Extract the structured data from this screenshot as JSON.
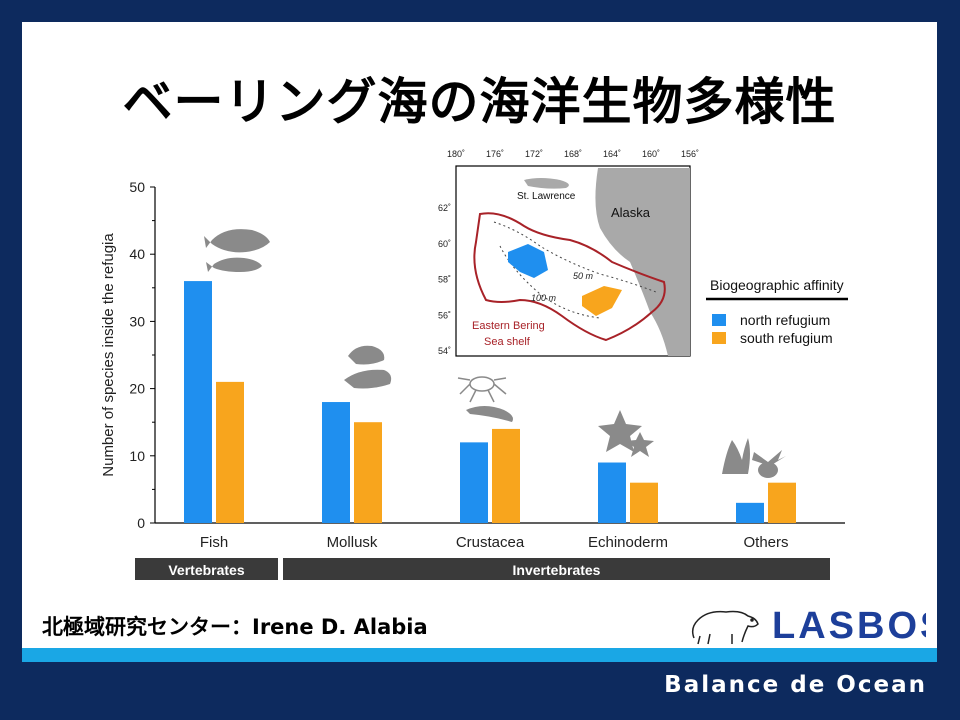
{
  "slide": {
    "title": "ベーリング海の海洋生物多様性",
    "credit": "北極域研究センター：Irene D. Alabia",
    "footer": "Balance de Ocean",
    "logo_text": "LASBOS",
    "colors": {
      "frame": "#0d2a5e",
      "stripe": "#1aa7e5",
      "north": "#1f8fef",
      "south": "#f8a51d"
    }
  },
  "chart_data": {
    "type": "bar",
    "ylabel": "Number of species inside the refugia",
    "ylim": [
      0,
      50
    ],
    "yticks": [
      0,
      10,
      20,
      30,
      40,
      50
    ],
    "categories": [
      "Fish",
      "Mollusk",
      "Crustacea",
      "Echinoderm",
      "Others"
    ],
    "series": [
      {
        "name": "north refugium",
        "color": "#1f8fef",
        "values": [
          36,
          18,
          12,
          9,
          3
        ]
      },
      {
        "name": "south refugium",
        "color": "#f8a51d",
        "values": [
          21,
          15,
          14,
          6,
          6
        ]
      }
    ],
    "groups": [
      {
        "label": "Vertebrates",
        "categories": [
          "Fish"
        ]
      },
      {
        "label": "Invertebrates",
        "categories": [
          "Mollusk",
          "Crustacea",
          "Echinoderm",
          "Others"
        ]
      }
    ],
    "legend_title": "Biogeographic affinity",
    "legend_placement": "right"
  },
  "map": {
    "lon_labels": [
      "180˚",
      "176˚",
      "172˚",
      "168˚",
      "164˚",
      "160˚",
      "156˚"
    ],
    "lat_labels": [
      "62˚",
      "60˚",
      "58˚",
      "56˚",
      "54˚"
    ],
    "place_labels": {
      "st_lawrence": "St. Lawrence",
      "alaska": "Alaska",
      "shelf": "Eastern Bering\nSea shelf"
    },
    "contours": [
      "50 m",
      "100 m"
    ]
  }
}
